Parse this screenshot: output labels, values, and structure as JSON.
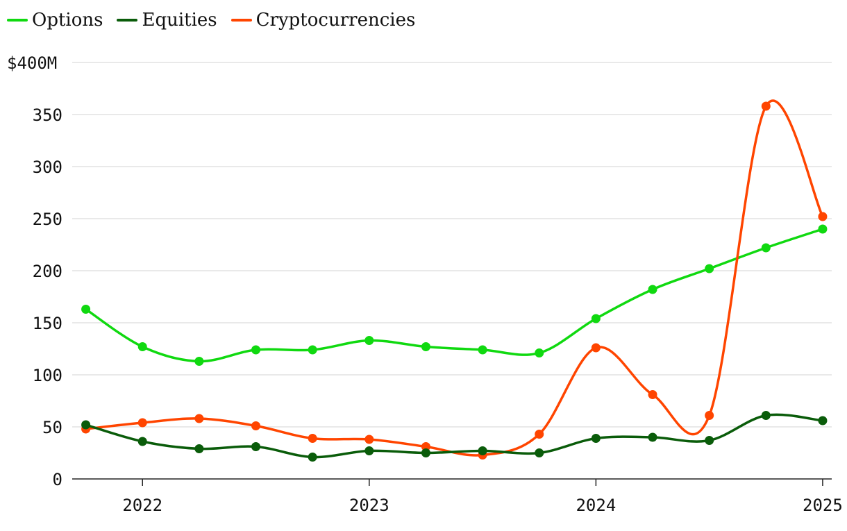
{
  "chart_data": {
    "type": "line",
    "title": "",
    "xlabel": "",
    "ylabel": "",
    "y_top_label": "$400M",
    "ylim": [
      0,
      400
    ],
    "yticks": [
      0,
      50,
      100,
      150,
      200,
      250,
      300,
      350,
      400
    ],
    "ytick_labels": [
      "0",
      "50",
      "100",
      "150",
      "200",
      "250",
      "300",
      "350",
      "$400M"
    ],
    "xlim": [
      2021.69,
      2025.04
    ],
    "xticks": [
      2022,
      2023,
      2024,
      2025
    ],
    "xtick_labels": [
      "2022",
      "2023",
      "2024",
      "2025"
    ],
    "x": [
      2021.75,
      2022.0,
      2022.25,
      2022.5,
      2022.75,
      2023.0,
      2023.25,
      2023.5,
      2023.75,
      2024.0,
      2024.25,
      2024.5,
      2024.75,
      2025.0
    ],
    "legend_position": "top-left",
    "series": [
      {
        "name": "Options",
        "color": "#10d910",
        "values": [
          163,
          127,
          113,
          124,
          124,
          133,
          127,
          124,
          121,
          154,
          182,
          202,
          222,
          240
        ]
      },
      {
        "name": "Equities",
        "color": "#0a5c0a",
        "values": [
          52,
          36,
          29,
          31,
          21,
          27,
          25,
          27,
          25,
          39,
          40,
          37,
          61,
          56
        ]
      },
      {
        "name": "Cryptocurrencies",
        "color": "#ff4500",
        "values": [
          48,
          54,
          58,
          51,
          39,
          38,
          31,
          23,
          43,
          126,
          81,
          61,
          358,
          252
        ]
      }
    ]
  }
}
